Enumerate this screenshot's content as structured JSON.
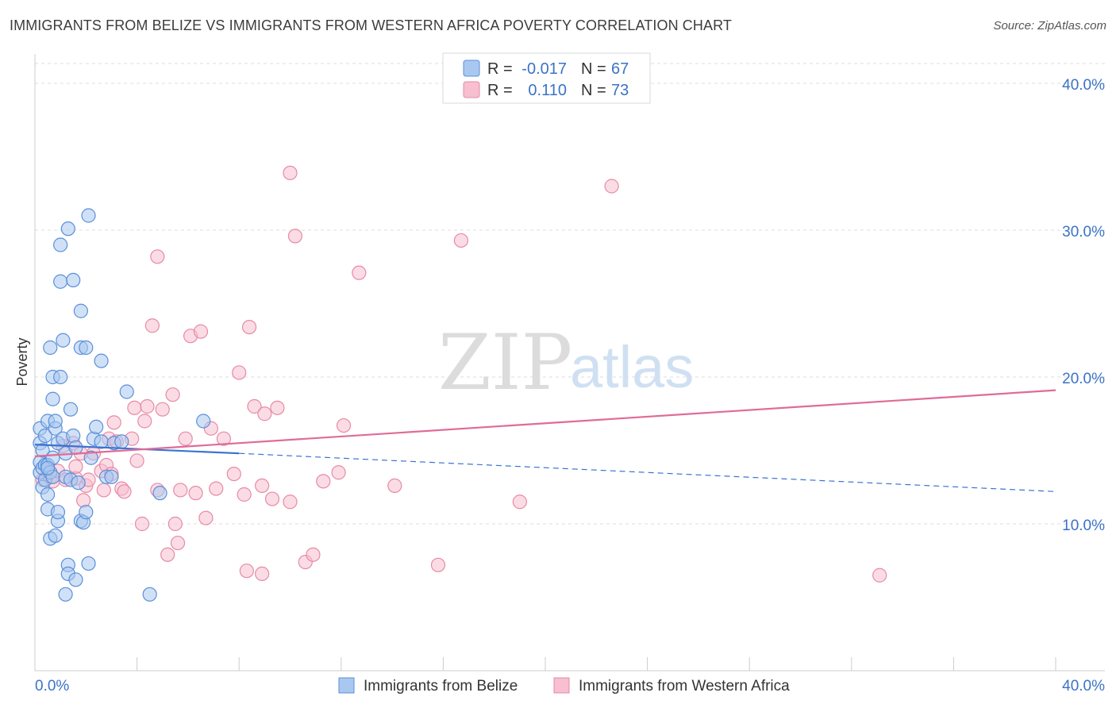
{
  "header": {
    "title": "IMMIGRANTS FROM BELIZE VS IMMIGRANTS FROM WESTERN AFRICA POVERTY CORRELATION CHART",
    "source": "Source: ZipAtlas.com"
  },
  "watermark": {
    "zip": "ZIP",
    "atlas": "atlas"
  },
  "colors": {
    "belize_fill": "#a9c8f0",
    "belize_stroke": "#5a8fd8",
    "belize_line": "#3b73d0",
    "wafrica_fill": "#f7bfd0",
    "wafrica_stroke": "#e68aa8",
    "wafrica_line": "#e06b98",
    "axis_label": "#3b73c6",
    "grid": "#dddddd"
  },
  "legend": {
    "rows": [
      {
        "r_label": "R =",
        "r_value": "-0.017",
        "n_label": "N =",
        "n_value": "67"
      },
      {
        "r_label": "R =",
        "r_value": "0.110",
        "n_label": "N =",
        "n_value": "73"
      }
    ]
  },
  "bottom_legend": {
    "items": [
      "Immigrants from Belize",
      "Immigrants from Western Africa"
    ]
  },
  "chart_data": {
    "type": "scatter",
    "title": "IMMIGRANTS FROM BELIZE VS IMMIGRANTS FROM WESTERN AFRICA POVERTY CORRELATION CHART",
    "xlabel": "",
    "ylabel": "Poverty",
    "xlim": [
      0,
      40
    ],
    "ylim": [
      0,
      42
    ],
    "x_tick_labels": [
      "0.0%",
      "40.0%"
    ],
    "y_ticks": [
      10,
      20,
      30,
      40
    ],
    "y_tick_labels": [
      "10.0%",
      "20.0%",
      "30.0%",
      "40.0%"
    ],
    "series": [
      {
        "name": "Immigrants from Belize",
        "r": -0.017,
        "n": 67,
        "trend": {
          "solid": [
            [
              0,
              15.4
            ],
            [
              8,
              14.8
            ]
          ],
          "dashed": [
            [
              8,
              14.8
            ],
            [
              40,
              12.2
            ]
          ]
        },
        "points": [
          [
            0.2,
            13.5
          ],
          [
            0.2,
            14.2
          ],
          [
            0.2,
            15.5
          ],
          [
            0.2,
            16.5
          ],
          [
            0.3,
            12.5
          ],
          [
            0.3,
            13.8
          ],
          [
            0.3,
            15.0
          ],
          [
            0.4,
            13.0
          ],
          [
            0.4,
            14.0
          ],
          [
            0.4,
            16.0
          ],
          [
            0.5,
            11.0
          ],
          [
            0.5,
            12.0
          ],
          [
            0.5,
            14.0
          ],
          [
            0.5,
            17.0
          ],
          [
            0.6,
            9.0
          ],
          [
            0.6,
            13.5
          ],
          [
            0.6,
            22.0
          ],
          [
            0.7,
            13.2
          ],
          [
            0.7,
            14.5
          ],
          [
            0.7,
            20.0
          ],
          [
            0.7,
            18.5
          ],
          [
            0.8,
            9.2
          ],
          [
            0.8,
            16.5
          ],
          [
            0.8,
            17.0
          ],
          [
            0.9,
            10.2
          ],
          [
            0.9,
            10.8
          ],
          [
            0.9,
            15.5
          ],
          [
            1.0,
            20.0
          ],
          [
            1.0,
            29.0
          ],
          [
            1.0,
            26.5
          ],
          [
            1.1,
            15.8
          ],
          [
            1.1,
            22.5
          ],
          [
            1.2,
            5.2
          ],
          [
            1.2,
            14.8
          ],
          [
            1.2,
            13.2
          ],
          [
            1.3,
            7.2
          ],
          [
            1.3,
            6.6
          ],
          [
            1.3,
            30.1
          ],
          [
            1.4,
            17.8
          ],
          [
            1.4,
            13.0
          ],
          [
            1.5,
            16.0
          ],
          [
            1.5,
            26.6
          ],
          [
            1.6,
            15.2
          ],
          [
            1.6,
            6.2
          ],
          [
            1.7,
            12.8
          ],
          [
            1.8,
            22.0
          ],
          [
            1.8,
            24.5
          ],
          [
            1.8,
            10.2
          ],
          [
            1.9,
            10.1
          ],
          [
            2.0,
            10.8
          ],
          [
            2.0,
            22.0
          ],
          [
            2.1,
            7.3
          ],
          [
            2.1,
            31.0
          ],
          [
            2.2,
            14.5
          ],
          [
            2.3,
            15.8
          ],
          [
            2.4,
            16.6
          ],
          [
            2.6,
            21.1
          ],
          [
            2.8,
            13.2
          ],
          [
            3.0,
            13.2
          ],
          [
            2.6,
            15.6
          ],
          [
            3.1,
            15.5
          ],
          [
            3.4,
            15.6
          ],
          [
            3.6,
            19.0
          ],
          [
            4.5,
            5.2
          ],
          [
            4.9,
            12.1
          ],
          [
            6.6,
            17.0
          ],
          [
            0.5,
            13.8
          ]
        ]
      },
      {
        "name": "Immigrants from Western Africa",
        "r": 0.11,
        "n": 73,
        "trend": {
          "solid": [
            [
              0,
              14.6
            ],
            [
              40,
              19.1
            ]
          ]
        },
        "points": [
          [
            0.3,
            13.0
          ],
          [
            0.5,
            13.4
          ],
          [
            0.6,
            13.2
          ],
          [
            0.7,
            12.9
          ],
          [
            0.9,
            13.6
          ],
          [
            1.1,
            15.3
          ],
          [
            1.2,
            13.0
          ],
          [
            1.5,
            15.5
          ],
          [
            1.6,
            13.1
          ],
          [
            1.6,
            13.9
          ],
          [
            1.8,
            14.8
          ],
          [
            1.9,
            11.6
          ],
          [
            2.0,
            12.6
          ],
          [
            2.1,
            13.0
          ],
          [
            2.3,
            14.8
          ],
          [
            2.6,
            13.6
          ],
          [
            2.7,
            12.3
          ],
          [
            2.8,
            14.0
          ],
          [
            2.9,
            15.8
          ],
          [
            3.0,
            13.4
          ],
          [
            3.1,
            16.9
          ],
          [
            3.2,
            15.6
          ],
          [
            3.4,
            12.4
          ],
          [
            3.5,
            12.2
          ],
          [
            3.8,
            15.8
          ],
          [
            3.9,
            17.9
          ],
          [
            4.0,
            14.3
          ],
          [
            4.2,
            10.0
          ],
          [
            4.3,
            17.0
          ],
          [
            4.4,
            18.0
          ],
          [
            4.6,
            23.5
          ],
          [
            4.8,
            12.3
          ],
          [
            5.0,
            17.8
          ],
          [
            5.2,
            7.9
          ],
          [
            5.4,
            18.8
          ],
          [
            5.6,
            8.7
          ],
          [
            5.7,
            12.3
          ],
          [
            5.9,
            15.8
          ],
          [
            6.1,
            22.8
          ],
          [
            6.3,
            12.1
          ],
          [
            6.5,
            23.1
          ],
          [
            6.7,
            10.4
          ],
          [
            6.9,
            16.5
          ],
          [
            7.1,
            12.4
          ],
          [
            7.4,
            15.8
          ],
          [
            7.8,
            13.4
          ],
          [
            8.0,
            20.3
          ],
          [
            8.2,
            12.0
          ],
          [
            8.4,
            23.4
          ],
          [
            8.6,
            18.0
          ],
          [
            8.9,
            12.6
          ],
          [
            9.0,
            17.5
          ],
          [
            9.3,
            11.7
          ],
          [
            9.5,
            17.9
          ],
          [
            10.0,
            11.5
          ],
          [
            10.2,
            29.6
          ],
          [
            10.6,
            7.4
          ],
          [
            10.9,
            7.9
          ],
          [
            11.3,
            12.9
          ],
          [
            11.9,
            13.5
          ],
          [
            12.1,
            16.7
          ],
          [
            12.7,
            27.1
          ],
          [
            14.1,
            12.6
          ],
          [
            15.8,
            7.2
          ],
          [
            16.7,
            29.3
          ],
          [
            19.0,
            11.5
          ],
          [
            22.6,
            33.0
          ],
          [
            33.1,
            6.5
          ],
          [
            10.0,
            33.9
          ],
          [
            8.3,
            6.8
          ],
          [
            8.9,
            6.6
          ],
          [
            5.5,
            10.0
          ],
          [
            4.8,
            28.2
          ]
        ]
      }
    ]
  }
}
